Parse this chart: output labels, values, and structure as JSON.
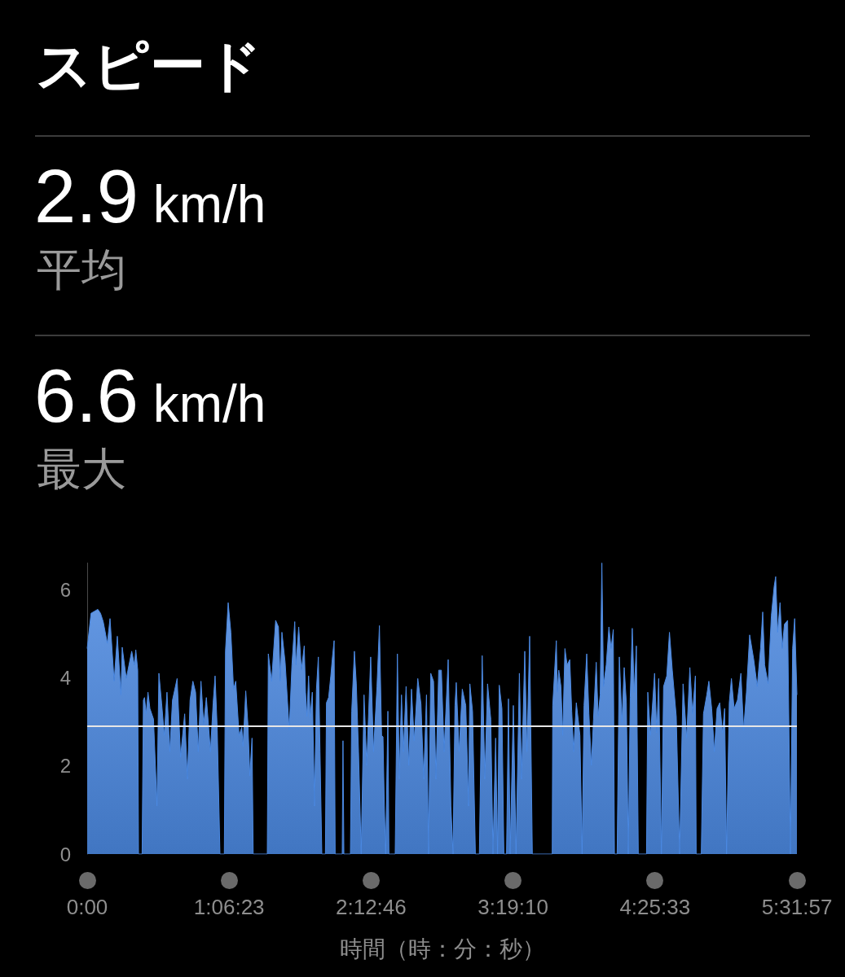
{
  "chart_data": {
    "type": "area",
    "title": "スピード",
    "annotations": [
      "2.9 km/h",
      "平均",
      "6.6 km/h",
      "最大"
    ],
    "xlabel": "時間（時：分：秒）",
    "x": [
      0.0,
      0.03,
      0.083,
      0.104,
      0.125,
      0.157,
      0.178,
      0.21,
      0.235,
      0.263,
      0.273,
      0.305,
      0.347,
      0.368,
      0.379,
      0.394,
      0.4,
      0.428,
      0.438,
      0.447,
      0.46,
      0.474,
      0.489,
      0.517,
      0.544,
      0.559,
      0.58,
      0.601,
      0.622,
      0.644,
      0.665,
      0.701,
      0.728,
      0.76,
      0.781,
      0.802,
      0.824,
      0.845,
      0.866,
      0.887,
      0.908,
      0.929,
      0.961,
      0.982,
      0.997,
      1.014,
      1.035,
      1.069,
      1.078,
      1.099,
      1.12,
      1.141,
      1.158,
      1.184,
      1.205,
      1.215,
      1.236,
      1.253,
      1.268,
      1.285,
      1.294,
      1.404,
      1.412,
      1.438,
      1.469,
      1.491,
      1.505,
      1.518,
      1.543,
      1.575,
      1.596,
      1.618,
      1.628,
      1.649,
      1.67,
      1.692,
      1.702,
      1.713,
      1.726,
      1.738,
      1.755,
      1.772,
      1.787,
      1.802,
      1.815,
      1.829,
      1.857,
      1.865,
      1.882,
      1.899,
      1.912,
      1.925,
      1.933,
      1.988,
      1.994,
      2.001,
      2.052,
      2.062,
      2.083,
      2.098,
      2.115,
      2.136,
      2.158,
      2.179,
      2.21,
      2.232,
      2.259,
      2.278,
      2.295,
      2.306,
      2.316,
      2.327,
      2.344,
      2.352,
      2.401,
      2.418,
      2.433,
      2.45,
      2.465,
      2.486,
      2.507,
      2.528,
      2.549,
      2.577,
      2.602,
      2.623,
      2.645,
      2.661,
      2.678,
      2.7,
      2.719,
      2.74,
      2.761,
      2.782,
      2.814,
      2.835,
      2.852,
      2.867,
      2.877,
      2.899,
      2.924,
      2.951,
      2.973,
      2.983,
      3.004,
      3.026,
      3.057,
      3.079,
      3.1,
      3.121,
      3.146,
      3.163,
      3.184,
      3.199,
      3.212,
      3.233,
      3.248,
      3.269,
      3.284,
      3.297,
      3.322,
      3.343,
      3.369,
      3.386,
      3.411,
      3.428,
      3.449,
      3.47,
      3.625,
      3.629,
      3.657,
      3.665,
      3.676,
      3.693,
      3.707,
      3.724,
      3.741,
      3.762,
      3.777,
      3.792,
      3.813,
      3.841,
      3.858,
      3.873,
      3.894,
      3.911,
      3.93,
      3.947,
      3.968,
      3.983,
      3.999,
      4.012,
      4.025,
      4.046,
      4.067,
      4.084,
      4.101,
      4.11,
      4.131,
      4.148,
      4.169,
      4.186,
      4.203,
      4.218,
      4.233,
      4.249,
      4.264,
      4.281,
      4.296,
      4.36,
      4.37,
      4.391,
      4.423,
      4.44,
      4.455,
      4.476,
      4.493,
      4.518,
      4.539,
      4.561,
      4.592,
      4.618,
      4.645,
      4.673,
      4.698,
      4.719,
      4.741,
      4.747,
      4.787,
      4.804,
      4.83,
      4.846,
      4.868,
      4.889,
      4.91,
      4.931,
      4.952,
      4.969,
      4.984,
      5.005,
      5.022,
      5.043,
      5.069,
      5.096,
      5.117,
      5.139,
      5.164,
      5.196,
      5.223,
      5.249,
      5.266,
      5.281,
      5.308,
      5.333,
      5.355,
      5.367,
      5.382,
      5.401,
      5.418,
      5.435,
      5.46,
      5.482,
      5.499,
      5.515,
      5.5325
    ],
    "values": [
      4.66,
      5.46,
      5.55,
      5.46,
      5.27,
      4.78,
      5.34,
      3.92,
      4.94,
      3.61,
      4.69,
      3.98,
      4.6,
      4.29,
      4.63,
      4.17,
      0,
      0,
      3.49,
      3.55,
      3.18,
      3.67,
      3.3,
      3.06,
      1.09,
      4.1,
      3.43,
      2.69,
      3.67,
      2.32,
      3.49,
      3.98,
      2.2,
      3.18,
      1.7,
      3.49,
      3.92,
      3.67,
      2.32,
      3.92,
      2.94,
      3.55,
      2.32,
      3.43,
      4.04,
      2.81,
      0,
      0,
      4.6,
      5.7,
      5.03,
      3.74,
      3.92,
      2.69,
      2.87,
      2.44,
      3.7,
      2.94,
      1.77,
      2.63,
      0,
      0,
      4.54,
      3.92,
      5.3,
      5.15,
      3.92,
      5.03,
      4.35,
      2.81,
      4.29,
      5.27,
      4.29,
      5.15,
      4.17,
      4.72,
      3.67,
      3.12,
      4.04,
      3.09,
      3.67,
      1.09,
      3.74,
      4.47,
      2.32,
      0,
      0,
      3.43,
      3.55,
      4.04,
      4.47,
      4.84,
      0,
      0,
      2.57,
      0,
      0,
      3.24,
      4.6,
      3.86,
      2.32,
      0,
      3.61,
      2.01,
      4.47,
      2.32,
      3.8,
      5.18,
      2.69,
      2.66,
      1.09,
      0,
      3.24,
      0,
      0,
      4.54,
      1.7,
      3.61,
      2.32,
      3.8,
      2.01,
      3.74,
      2.57,
      3.98,
      3.4,
      1.7,
      3.61,
      0,
      4.1,
      3.92,
      1.7,
      4.17,
      4.17,
      2.32,
      4.41,
      1.09,
      0,
      3.37,
      3.89,
      2.32,
      3.74,
      3.37,
      1.09,
      3.86,
      3.24,
      0,
      0,
      4.5,
      1.7,
      3.86,
      3.06,
      0,
      2.63,
      0,
      3.83,
      3.3,
      0,
      0,
      3.52,
      0,
      3.37,
      0,
      4.1,
      1.7,
      4.6,
      2.32,
      4.94,
      0,
      0,
      3.37,
      4.84,
      3.67,
      4.17,
      3.8,
      2.69,
      4.66,
      4.29,
      4.41,
      3.24,
      2.32,
      3.43,
      2.69,
      0,
      3.37,
      4.54,
      3.18,
      2.01,
      3.06,
      4.35,
      3.12,
      3.61,
      6.6,
      3.8,
      4.29,
      5.15,
      4.66,
      5.09,
      0,
      0,
      4.47,
      3.0,
      4.23,
      3.43,
      0,
      3.55,
      5.12,
      3.67,
      4.72,
      0,
      0,
      3.67,
      2.69,
      4.1,
      2.75,
      3.98,
      0,
      3.8,
      4.04,
      5.03,
      4.17,
      3.12,
      0,
      3.86,
      2.63,
      4.23,
      3.18,
      4.04,
      0,
      0,
      3.18,
      3.61,
      3.92,
      3.3,
      2.32,
      3.3,
      3.43,
      2.75,
      3.3,
      0,
      3.43,
      3.98,
      3.3,
      3.49,
      4.1,
      2.81,
      3.67,
      4.97,
      4.41,
      3.8,
      4.66,
      5.49,
      4.29,
      3.86,
      5.4,
      6.07,
      6.29,
      5.03,
      5.7,
      4.66,
      5.21,
      5.3,
      0,
      4.66,
      5.34,
      3.61
    ],
    "color": "#4b89e2",
    "xlim": [
      0,
      5.5325
    ],
    "xticks": [
      {
        "value": 0,
        "label": "0:00"
      },
      {
        "value": 1.1064,
        "label": "1:06:23"
      },
      {
        "value": 2.2128,
        "label": "2:12:46"
      },
      {
        "value": 3.3194,
        "label": "3:19:10"
      },
      {
        "value": 4.4258,
        "label": "4:25:33"
      },
      {
        "value": 5.5325,
        "label": "5:31:57"
      }
    ],
    "ylim": [
      0,
      6.6
    ],
    "yticks": [
      0,
      2,
      4,
      6
    ],
    "ref_lines": [
      {
        "axis": "y",
        "value": 2.9,
        "color": "#e6e6e6"
      }
    ]
  }
}
